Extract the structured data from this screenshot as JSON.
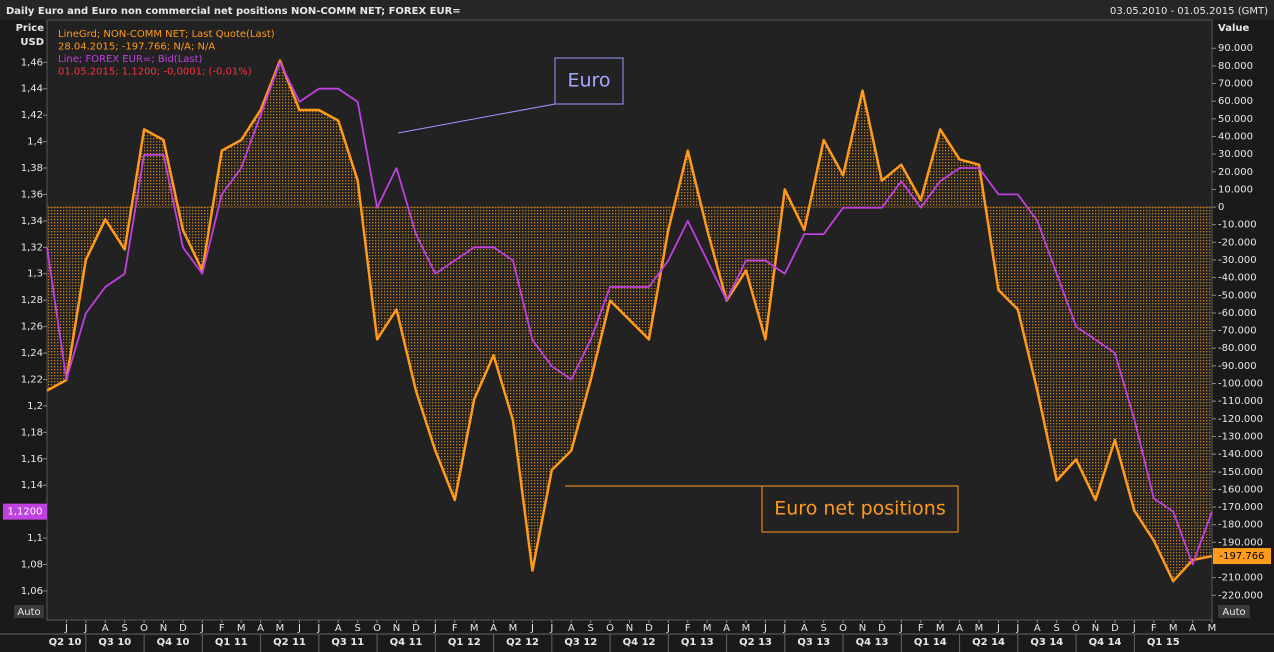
{
  "chart_data": {
    "type": "line",
    "title": "Daily Euro and Euro non commercial net positions NON-COMM NET; FOREX EUR=",
    "date_range": "03.05.2010 - 01.05.2015 (GMT)",
    "y_label": [
      "Price",
      "USD"
    ],
    "y2_label": "Value",
    "legend_lines": [
      "LineGrd; NON-COMM NET; Last Quote(Last)",
      "28.04.2015; -197.766; N/A; N/A",
      "Line; FOREX EUR=; Bid(Last)",
      "01.05.2015; 1,1200; -0,0001; (-0,01%)"
    ],
    "annotations": [
      "Euro",
      "Euro net positions"
    ],
    "auto_labels": [
      "Auto",
      "Auto"
    ],
    "x": [
      "2010-05",
      "2010-06",
      "2010-07",
      "2010-08",
      "2010-09",
      "2010-10",
      "2010-11",
      "2010-12",
      "2011-01",
      "2011-02",
      "2011-03",
      "2011-04",
      "2011-05",
      "2011-06",
      "2011-07",
      "2011-08",
      "2011-09",
      "2011-10",
      "2011-11",
      "2011-12",
      "2012-01",
      "2012-02",
      "2012-03",
      "2012-04",
      "2012-05",
      "2012-06",
      "2012-07",
      "2012-08",
      "2012-09",
      "2012-10",
      "2012-11",
      "2012-12",
      "2013-01",
      "2013-02",
      "2013-03",
      "2013-04",
      "2013-05",
      "2013-06",
      "2013-07",
      "2013-08",
      "2013-09",
      "2013-10",
      "2013-11",
      "2013-12",
      "2014-01",
      "2014-02",
      "2014-03",
      "2014-04",
      "2014-05",
      "2014-06",
      "2014-07",
      "2014-08",
      "2014-09",
      "2014-10",
      "2014-11",
      "2014-12",
      "2015-01",
      "2015-02",
      "2015-03",
      "2015-04",
      "2015-05"
    ],
    "xlim": [
      "2010-05",
      "2015-05"
    ],
    "series": [
      {
        "name": "NON-COMM NET",
        "color": "#ff9a1a",
        "axis": "y2",
        "fill_to_zero": true,
        "last_label": "-197.766",
        "values": [
          -104000,
          -98000,
          -30000,
          -7000,
          -24000,
          44000,
          38000,
          -13000,
          -36000,
          32000,
          38000,
          55000,
          83000,
          55000,
          55000,
          49000,
          15000,
          -75000,
          -58000,
          -104000,
          -138000,
          -166000,
          -109000,
          -84000,
          -121000,
          -206000,
          -149000,
          -138000,
          -98000,
          -53000,
          -64000,
          -75000,
          -13000,
          32000,
          -13000,
          -53000,
          -36000,
          -75000,
          10000,
          -13000,
          38000,
          18000,
          66000,
          15000,
          24000,
          4000,
          44000,
          27000,
          24000,
          -47000,
          -58000,
          -104000,
          -155000,
          -143000,
          -166000,
          -132000,
          -172000,
          -189000,
          -212000,
          -200000,
          -197766
        ]
      },
      {
        "name": "FOREX EUR=",
        "color": "#c040e0",
        "axis": "y",
        "last_label": "1,1200",
        "values": [
          1.32,
          1.22,
          1.27,
          1.29,
          1.3,
          1.39,
          1.39,
          1.32,
          1.3,
          1.36,
          1.38,
          1.42,
          1.46,
          1.43,
          1.44,
          1.44,
          1.43,
          1.35,
          1.38,
          1.33,
          1.3,
          1.31,
          1.32,
          1.32,
          1.31,
          1.25,
          1.23,
          1.22,
          1.25,
          1.29,
          1.29,
          1.29,
          1.31,
          1.34,
          1.31,
          1.28,
          1.31,
          1.31,
          1.3,
          1.33,
          1.33,
          1.35,
          1.35,
          1.35,
          1.37,
          1.35,
          1.37,
          1.38,
          1.38,
          1.36,
          1.36,
          1.34,
          1.3,
          1.26,
          1.25,
          1.24,
          1.19,
          1.13,
          1.12,
          1.08,
          1.12
        ]
      }
    ],
    "ylim": [
      1.038,
      1.492
    ],
    "yticks": [
      {
        "value": 1.46,
        "label": "1,46"
      },
      {
        "value": 1.44,
        "label": "1,44"
      },
      {
        "value": 1.42,
        "label": "1,42"
      },
      {
        "value": 1.4,
        "label": "1,4"
      },
      {
        "value": 1.38,
        "label": "1,38"
      },
      {
        "value": 1.36,
        "label": "1,36"
      },
      {
        "value": 1.34,
        "label": "1,34"
      },
      {
        "value": 1.32,
        "label": "1,32"
      },
      {
        "value": 1.3,
        "label": "1,3"
      },
      {
        "value": 1.28,
        "label": "1,28"
      },
      {
        "value": 1.26,
        "label": "1,26"
      },
      {
        "value": 1.24,
        "label": "1,24"
      },
      {
        "value": 1.22,
        "label": "1,22"
      },
      {
        "value": 1.2,
        "label": "1,2"
      },
      {
        "value": 1.18,
        "label": "1,18"
      },
      {
        "value": 1.16,
        "label": "1,16"
      },
      {
        "value": 1.14,
        "label": "1,14"
      },
      {
        "value": 1.1,
        "label": "1,1"
      },
      {
        "value": 1.08,
        "label": "1,08"
      },
      {
        "value": 1.06,
        "label": "1,06"
      }
    ],
    "y2lim": [
      -234000,
      106000
    ],
    "y2ticks": [
      {
        "value": 90000,
        "label": "90.000"
      },
      {
        "value": 80000,
        "label": "80.000"
      },
      {
        "value": 70000,
        "label": "70.000"
      },
      {
        "value": 60000,
        "label": "60.000"
      },
      {
        "value": 50000,
        "label": "50.000"
      },
      {
        "value": 40000,
        "label": "40.000"
      },
      {
        "value": 30000,
        "label": "30.000"
      },
      {
        "value": 20000,
        "label": "20.000"
      },
      {
        "value": 10000,
        "label": "10.000"
      },
      0,
      {
        "value": -10000,
        "label": "-10.000"
      },
      {
        "value": -20000,
        "label": "-20.000"
      },
      {
        "value": -30000,
        "label": "-30.000"
      },
      {
        "value": -40000,
        "label": "-40.000"
      },
      {
        "value": -50000,
        "label": "-50.000"
      },
      {
        "value": -60000,
        "label": "-60.000"
      },
      {
        "value": -70000,
        "label": "-70.000"
      },
      {
        "value": -80000,
        "label": "-80.000"
      },
      {
        "value": -90000,
        "label": "-90.000"
      },
      {
        "value": -100000,
        "label": "-100.000"
      },
      {
        "value": -110000,
        "label": "-110.000"
      },
      {
        "value": -120000,
        "label": "-120.000"
      },
      {
        "value": -130000,
        "label": "-130.000"
      },
      {
        "value": -140000,
        "label": "-140.000"
      },
      {
        "value": -150000,
        "label": "-150.000"
      },
      {
        "value": -160000,
        "label": "-160.000"
      },
      {
        "value": -170000,
        "label": "-170.000"
      },
      {
        "value": -180000,
        "label": "-180.000"
      },
      {
        "value": -190000,
        "label": "-190.000"
      },
      {
        "value": -210000,
        "label": "-210.000"
      },
      {
        "value": -220000,
        "label": "-220.000"
      }
    ],
    "month_ticks": [
      {
        "value": "2010-06",
        "label": "J"
      },
      {
        "value": "2010-07",
        "label": "J"
      },
      {
        "value": "2010-08",
        "label": "A"
      },
      {
        "value": "2010-09",
        "label": "S"
      },
      {
        "value": "2010-10",
        "label": "O"
      },
      {
        "value": "2010-11",
        "label": "N"
      },
      {
        "value": "2010-12",
        "label": "D"
      },
      {
        "value": "2011-01",
        "label": "J"
      },
      {
        "value": "2011-02",
        "label": "F"
      },
      {
        "value": "2011-03",
        "label": "M"
      },
      {
        "value": "2011-04",
        "label": "A"
      },
      {
        "value": "2011-05",
        "label": "M"
      },
      {
        "value": "2011-06",
        "label": "J"
      },
      {
        "value": "2011-07",
        "label": "J"
      },
      {
        "value": "2011-08",
        "label": "A"
      },
      {
        "value": "2011-09",
        "label": "S"
      },
      {
        "value": "2011-10",
        "label": "O"
      },
      {
        "value": "2011-11",
        "label": "N"
      },
      {
        "value": "2011-12",
        "label": "D"
      },
      {
        "value": "2012-01",
        "label": "J"
      },
      {
        "value": "2012-02",
        "label": "F"
      },
      {
        "value": "2012-03",
        "label": "M"
      },
      {
        "value": "2012-04",
        "label": "A"
      },
      {
        "value": "2012-05",
        "label": "M"
      },
      {
        "value": "2012-06",
        "label": "J"
      },
      {
        "value": "2012-07",
        "label": "J"
      },
      {
        "value": "2012-08",
        "label": "A"
      },
      {
        "value": "2012-09",
        "label": "S"
      },
      {
        "value": "2012-10",
        "label": "O"
      },
      {
        "value": "2012-11",
        "label": "N"
      },
      {
        "value": "2012-12",
        "label": "D"
      },
      {
        "value": "2013-01",
        "label": "J"
      },
      {
        "value": "2013-02",
        "label": "F"
      },
      {
        "value": "2013-03",
        "label": "M"
      },
      {
        "value": "2013-04",
        "label": "A"
      },
      {
        "value": "2013-05",
        "label": "M"
      },
      {
        "value": "2013-06",
        "label": "J"
      },
      {
        "value": "2013-07",
        "label": "J"
      },
      {
        "value": "2013-08",
        "label": "A"
      },
      {
        "value": "2013-09",
        "label": "S"
      },
      {
        "value": "2013-10",
        "label": "O"
      },
      {
        "value": "2013-11",
        "label": "N"
      },
      {
        "value": "2013-12",
        "label": "D"
      },
      {
        "value": "2014-01",
        "label": "J"
      },
      {
        "value": "2014-02",
        "label": "F"
      },
      {
        "value": "2014-03",
        "label": "M"
      },
      {
        "value": "2014-04",
        "label": "A"
      },
      {
        "value": "2014-05",
        "label": "M"
      },
      {
        "value": "2014-06",
        "label": "J"
      },
      {
        "value": "2014-07",
        "label": "J"
      },
      {
        "value": "2014-08",
        "label": "A"
      },
      {
        "value": "2014-09",
        "label": "S"
      },
      {
        "value": "2014-10",
        "label": "O"
      },
      {
        "value": "2014-11",
        "label": "N"
      },
      {
        "value": "2014-12",
        "label": "D"
      },
      {
        "value": "2015-01",
        "label": "J"
      },
      {
        "value": "2015-02",
        "label": "F"
      },
      {
        "value": "2015-03",
        "label": "M"
      },
      {
        "value": "2015-04",
        "label": "A"
      },
      {
        "value": "2015-05",
        "label": "M"
      }
    ],
    "quarter_ticks": [
      {
        "value": "2010-04",
        "label": "Q2 10"
      },
      {
        "value": "2010-07",
        "label": "Q3 10"
      },
      {
        "value": "2010-10",
        "label": "Q4 10"
      },
      {
        "value": "2011-01",
        "label": "Q1 11"
      },
      {
        "value": "2011-04",
        "label": "Q2 11"
      },
      {
        "value": "2011-07",
        "label": "Q3 11"
      },
      {
        "value": "2011-10",
        "label": "Q4 11"
      },
      {
        "value": "2012-01",
        "label": "Q1 12"
      },
      {
        "value": "2012-04",
        "label": "Q2 12"
      },
      {
        "value": "2012-07",
        "label": "Q3 12"
      },
      {
        "value": "2012-10",
        "label": "Q4 12"
      },
      {
        "value": "2013-01",
        "label": "Q1 13"
      },
      {
        "value": "2013-04",
        "label": "Q2 13"
      },
      {
        "value": "2013-07",
        "label": "Q3 13"
      },
      {
        "value": "2013-10",
        "label": "Q4 13"
      },
      {
        "value": "2014-01",
        "label": "Q1 14"
      },
      {
        "value": "2014-04",
        "label": "Q2 14"
      },
      {
        "value": "2014-07",
        "label": "Q3 14"
      },
      {
        "value": "2014-10",
        "label": "Q4 14"
      },
      {
        "value": "2015-01",
        "label": "Q1 15"
      }
    ]
  }
}
